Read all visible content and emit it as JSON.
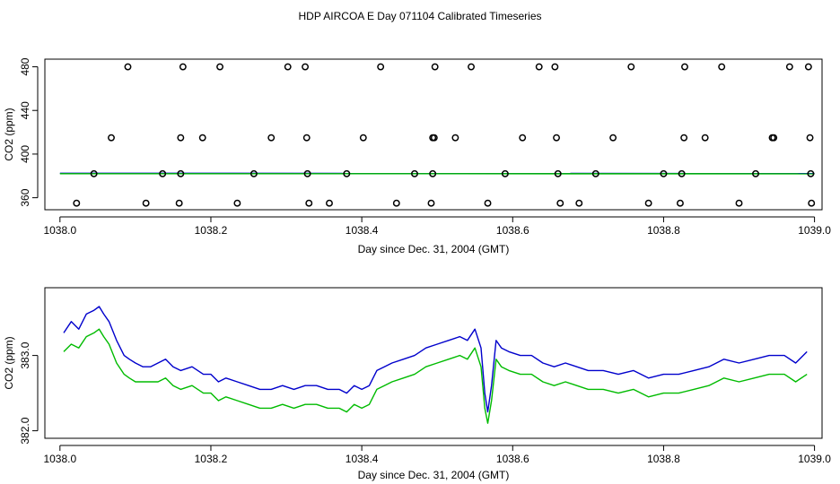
{
  "title": "HDP AIRCOA E  Day 071104  Calibrated Timeseries",
  "colors": {
    "blue": "#0000cc",
    "green": "#00bb00",
    "points": "#000000"
  },
  "chart_data": [
    {
      "type": "scatter",
      "xlabel": "Day since Dec. 31, 2004 (GMT)",
      "ylabel": "CO2 (ppm)",
      "xlim": [
        1037.98,
        1039.01
      ],
      "ylim": [
        349,
        487
      ],
      "x_ticks": [
        1038.0,
        1038.2,
        1038.4,
        1038.6,
        1038.8,
        1039.0
      ],
      "x_tick_labels": [
        "1038.0",
        "1038.2",
        "1038.4",
        "1038.6",
        "1038.8",
        "1039.0"
      ],
      "y_ticks": [
        360,
        400,
        440,
        480
      ],
      "y_tick_labels": [
        "360",
        "400",
        "440",
        "480"
      ],
      "points": [
        {
          "x": 1038.09,
          "y": 480
        },
        {
          "x": 1038.163,
          "y": 480
        },
        {
          "x": 1038.212,
          "y": 480
        },
        {
          "x": 1038.302,
          "y": 480
        },
        {
          "x": 1038.325,
          "y": 480
        },
        {
          "x": 1038.425,
          "y": 480
        },
        {
          "x": 1038.497,
          "y": 480
        },
        {
          "x": 1038.545,
          "y": 480
        },
        {
          "x": 1038.635,
          "y": 480
        },
        {
          "x": 1038.656,
          "y": 480
        },
        {
          "x": 1038.757,
          "y": 480
        },
        {
          "x": 1038.828,
          "y": 480
        },
        {
          "x": 1038.877,
          "y": 480
        },
        {
          "x": 1038.967,
          "y": 480
        },
        {
          "x": 1038.992,
          "y": 480
        },
        {
          "x": 1038.068,
          "y": 415
        },
        {
          "x": 1038.16,
          "y": 415
        },
        {
          "x": 1038.189,
          "y": 415
        },
        {
          "x": 1038.28,
          "y": 415
        },
        {
          "x": 1038.327,
          "y": 415
        },
        {
          "x": 1038.402,
          "y": 415
        },
        {
          "x": 1038.494,
          "y": 415
        },
        {
          "x": 1038.496,
          "y": 415
        },
        {
          "x": 1038.524,
          "y": 415
        },
        {
          "x": 1038.613,
          "y": 415
        },
        {
          "x": 1038.658,
          "y": 415
        },
        {
          "x": 1038.733,
          "y": 415
        },
        {
          "x": 1038.827,
          "y": 415
        },
        {
          "x": 1038.855,
          "y": 415
        },
        {
          "x": 1038.944,
          "y": 415
        },
        {
          "x": 1038.946,
          "y": 415
        },
        {
          "x": 1038.994,
          "y": 415
        },
        {
          "x": 1038.045,
          "y": 382
        },
        {
          "x": 1038.136,
          "y": 382
        },
        {
          "x": 1038.16,
          "y": 382
        },
        {
          "x": 1038.257,
          "y": 382
        },
        {
          "x": 1038.328,
          "y": 382
        },
        {
          "x": 1038.38,
          "y": 382
        },
        {
          "x": 1038.47,
          "y": 382
        },
        {
          "x": 1038.494,
          "y": 382
        },
        {
          "x": 1038.59,
          "y": 382
        },
        {
          "x": 1038.66,
          "y": 382
        },
        {
          "x": 1038.71,
          "y": 382
        },
        {
          "x": 1038.8,
          "y": 382
        },
        {
          "x": 1038.824,
          "y": 382
        },
        {
          "x": 1038.922,
          "y": 382
        },
        {
          "x": 1038.995,
          "y": 382
        },
        {
          "x": 1038.022,
          "y": 355
        },
        {
          "x": 1038.114,
          "y": 355
        },
        {
          "x": 1038.158,
          "y": 355
        },
        {
          "x": 1038.235,
          "y": 355
        },
        {
          "x": 1038.33,
          "y": 355
        },
        {
          "x": 1038.357,
          "y": 355
        },
        {
          "x": 1038.446,
          "y": 355
        },
        {
          "x": 1038.492,
          "y": 355
        },
        {
          "x": 1038.567,
          "y": 355
        },
        {
          "x": 1038.663,
          "y": 355
        },
        {
          "x": 1038.688,
          "y": 355
        },
        {
          "x": 1038.78,
          "y": 355
        },
        {
          "x": 1038.822,
          "y": 355
        },
        {
          "x": 1038.9,
          "y": 355
        },
        {
          "x": 1038.996,
          "y": 355
        }
      ],
      "lines": [
        {
          "color": "blue",
          "x": [
            1038.0,
            1039.0
          ],
          "y": [
            382.4,
            382.2
          ]
        },
        {
          "color": "green",
          "x": [
            1038.0,
            1039.0
          ],
          "y": [
            382.0,
            381.9
          ]
        }
      ]
    },
    {
      "type": "line",
      "xlabel": "Day since Dec. 31, 2004 (GMT)",
      "ylabel": "CO2 (ppm)",
      "xlim": [
        1037.98,
        1039.01
      ],
      "ylim": [
        381.9,
        383.9
      ],
      "x_ticks": [
        1038.0,
        1038.2,
        1038.4,
        1038.6,
        1038.8,
        1039.0
      ],
      "x_tick_labels": [
        "1038.0",
        "1038.2",
        "1038.4",
        "1038.6",
        "1038.8",
        "1039.0"
      ],
      "y_ticks": [
        382.0,
        383.0
      ],
      "y_tick_labels": [
        "382.0",
        "383.0"
      ],
      "series": [
        {
          "color": "blue",
          "x": [
            1038.005,
            1038.015,
            1038.025,
            1038.035,
            1038.045,
            1038.052,
            1038.058,
            1038.065,
            1038.075,
            1038.085,
            1038.092,
            1038.1,
            1038.11,
            1038.12,
            1038.13,
            1038.14,
            1038.15,
            1038.16,
            1038.175,
            1038.19,
            1038.2,
            1038.21,
            1038.22,
            1038.235,
            1038.25,
            1038.265,
            1038.28,
            1038.295,
            1038.31,
            1038.325,
            1038.34,
            1038.355,
            1038.37,
            1038.38,
            1038.39,
            1038.4,
            1038.41,
            1038.42,
            1038.43,
            1038.44,
            1038.455,
            1038.47,
            1038.485,
            1038.5,
            1038.515,
            1038.53,
            1038.54,
            1038.55,
            1038.558,
            1038.563,
            1038.567,
            1038.572,
            1038.578,
            1038.585,
            1038.595,
            1038.61,
            1038.625,
            1038.64,
            1038.655,
            1038.67,
            1038.685,
            1038.7,
            1038.72,
            1038.74,
            1038.76,
            1038.78,
            1038.8,
            1038.82,
            1038.84,
            1038.86,
            1038.88,
            1038.9,
            1038.92,
            1038.94,
            1038.96,
            1038.975,
            1038.99
          ],
          "y": [
            383.3,
            383.45,
            383.35,
            383.55,
            383.6,
            383.65,
            383.55,
            383.45,
            383.2,
            383.0,
            382.95,
            382.9,
            382.85,
            382.85,
            382.9,
            382.95,
            382.85,
            382.8,
            382.85,
            382.75,
            382.75,
            382.65,
            382.7,
            382.65,
            382.6,
            382.55,
            382.55,
            382.6,
            382.55,
            382.6,
            382.6,
            382.55,
            382.55,
            382.5,
            382.6,
            382.55,
            382.6,
            382.8,
            382.85,
            382.9,
            382.95,
            383.0,
            383.1,
            383.15,
            383.2,
            383.25,
            383.2,
            383.35,
            383.1,
            382.5,
            382.25,
            382.6,
            383.2,
            383.1,
            383.05,
            383.0,
            383.0,
            382.9,
            382.85,
            382.9,
            382.85,
            382.8,
            382.8,
            382.75,
            382.8,
            382.7,
            382.75,
            382.75,
            382.8,
            382.85,
            382.95,
            382.9,
            382.95,
            383.0,
            383.0,
            382.9,
            383.05
          ]
        },
        {
          "color": "green",
          "x": [
            1038.005,
            1038.015,
            1038.025,
            1038.035,
            1038.045,
            1038.052,
            1038.058,
            1038.065,
            1038.075,
            1038.085,
            1038.092,
            1038.1,
            1038.11,
            1038.12,
            1038.13,
            1038.14,
            1038.15,
            1038.16,
            1038.175,
            1038.19,
            1038.2,
            1038.21,
            1038.22,
            1038.235,
            1038.25,
            1038.265,
            1038.28,
            1038.295,
            1038.31,
            1038.325,
            1038.34,
            1038.355,
            1038.37,
            1038.38,
            1038.39,
            1038.4,
            1038.41,
            1038.42,
            1038.43,
            1038.44,
            1038.455,
            1038.47,
            1038.485,
            1038.5,
            1038.515,
            1038.53,
            1038.54,
            1038.55,
            1038.558,
            1038.563,
            1038.567,
            1038.572,
            1038.578,
            1038.585,
            1038.595,
            1038.61,
            1038.625,
            1038.64,
            1038.655,
            1038.67,
            1038.685,
            1038.7,
            1038.72,
            1038.74,
            1038.76,
            1038.78,
            1038.8,
            1038.82,
            1038.84,
            1038.86,
            1038.88,
            1038.9,
            1038.92,
            1038.94,
            1038.96,
            1038.975,
            1038.99
          ],
          "y": [
            383.05,
            383.15,
            383.1,
            383.25,
            383.3,
            383.35,
            383.25,
            383.15,
            382.9,
            382.75,
            382.7,
            382.65,
            382.65,
            382.65,
            382.65,
            382.7,
            382.6,
            382.55,
            382.6,
            382.5,
            382.5,
            382.4,
            382.45,
            382.4,
            382.35,
            382.3,
            382.3,
            382.35,
            382.3,
            382.35,
            382.35,
            382.3,
            382.3,
            382.25,
            382.35,
            382.3,
            382.35,
            382.55,
            382.6,
            382.65,
            382.7,
            382.75,
            382.85,
            382.9,
            382.95,
            383.0,
            382.95,
            383.1,
            382.85,
            382.3,
            382.1,
            382.4,
            382.95,
            382.85,
            382.8,
            382.75,
            382.75,
            382.65,
            382.6,
            382.65,
            382.6,
            382.55,
            382.55,
            382.5,
            382.55,
            382.45,
            382.5,
            382.5,
            382.55,
            382.6,
            382.7,
            382.65,
            382.7,
            382.75,
            382.75,
            382.65,
            382.75
          ]
        }
      ]
    }
  ]
}
